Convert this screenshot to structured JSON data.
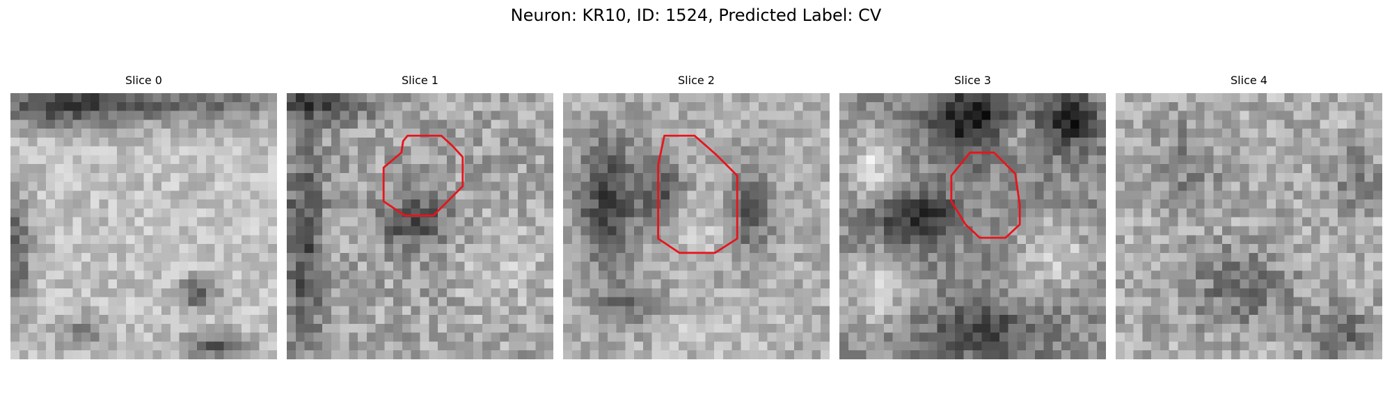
{
  "figure": {
    "title": "Neuron: KR10, ID: 1524, Predicted Label: CV"
  },
  "panels": [
    {
      "title": "Slice 0",
      "has_roi": false
    },
    {
      "title": "Slice 1",
      "has_roi": true
    },
    {
      "title": "Slice 2",
      "has_roi": true
    },
    {
      "title": "Slice 3",
      "has_roi": true
    },
    {
      "title": "Slice 4",
      "has_roi": false
    }
  ],
  "colors": {
    "roi_outline": "#e8141c",
    "colormap": "gray"
  }
}
